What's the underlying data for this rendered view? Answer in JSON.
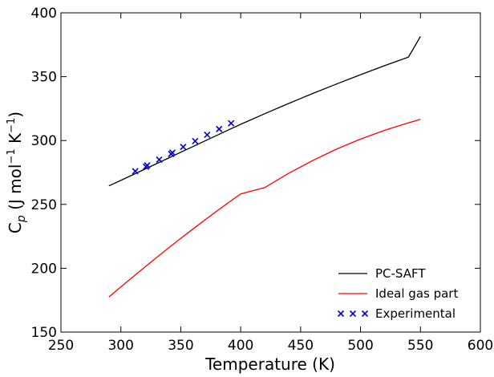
{
  "chart_data": {
    "type": "line",
    "xlabel": "Temperature (K)",
    "ylabel_parts": {
      "main": "C",
      "sub": "p",
      "unit_open": " (J mol",
      "sup1": "−1",
      "unit_mid": " K",
      "sup2": "−1",
      "unit_close": ")"
    },
    "xlim": [
      250,
      600
    ],
    "ylim": [
      150,
      400
    ],
    "xticks": [
      250,
      300,
      350,
      400,
      450,
      500,
      550,
      600
    ],
    "yticks": [
      150,
      200,
      250,
      300,
      350,
      400
    ],
    "legend_position": "bottom-right",
    "grid": false,
    "series": [
      {
        "name": "PC-SAFT",
        "kind": "line",
        "color": "#000000",
        "x": [
          290,
          300,
          310,
          320,
          330,
          340,
          350,
          360,
          370,
          380,
          390,
          400,
          420,
          440,
          460,
          480,
          500,
          520,
          540,
          550
        ],
        "y": [
          264.5,
          268.8,
          273.2,
          277.6,
          282.0,
          286.4,
          290.8,
          295.2,
          299.6,
          304.0,
          308.4,
          312.7,
          321.0,
          329.0,
          336.8,
          344.3,
          351.6,
          358.6,
          365.3,
          381.5
        ]
      },
      {
        "name": "Ideal gas part",
        "kind": "line",
        "color": "#ff0000",
        "x": [
          290,
          300,
          310,
          320,
          330,
          340,
          350,
          360,
          370,
          380,
          390,
          400,
          420,
          440,
          460,
          480,
          500,
          520,
          540,
          550
        ],
        "y": [
          177.5,
          185.4,
          193.2,
          200.9,
          208.5,
          216.0,
          223.4,
          230.6,
          237.7,
          244.7,
          251.5,
          258.2,
          263.1,
          274.3,
          284.3,
          293.3,
          301.1,
          308.0,
          313.9,
          316.5
        ]
      },
      {
        "name": "Experimental",
        "kind": "scatter",
        "marker": "x",
        "color": "#0000cc",
        "x": [
          312,
          321,
          322,
          332,
          342,
          343,
          352,
          362,
          372,
          382,
          392
        ],
        "y": [
          276.0,
          279.5,
          280.5,
          285.0,
          289.5,
          290.5,
          295.0,
          299.5,
          304.5,
          309.0,
          313.5
        ]
      }
    ]
  }
}
